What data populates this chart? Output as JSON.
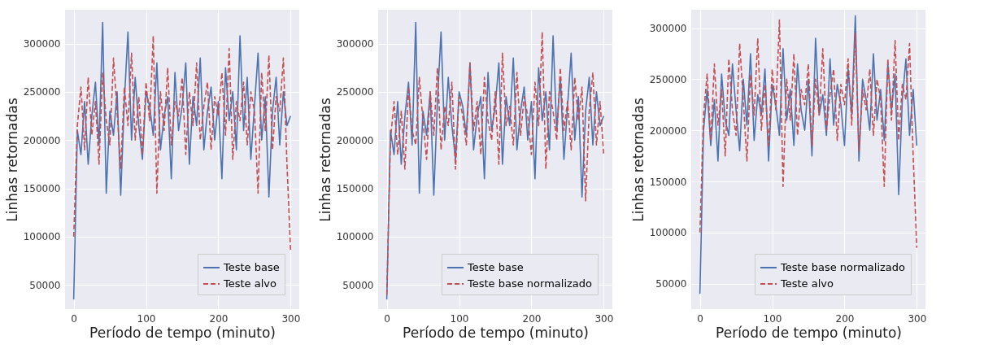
{
  "chart_data": [
    {
      "type": "line",
      "xlabel": "Período de tempo (minuto)",
      "ylabel": "Linhas retornadas",
      "grid": true,
      "legend": "bottom right",
      "xlim": [
        -12,
        312
      ],
      "ylim": [
        25000,
        335000
      ],
      "xticks": [
        0,
        100,
        200,
        300
      ],
      "yticks": [
        50000,
        100000,
        150000,
        200000,
        250000,
        300000
      ],
      "x": [
        0,
        5,
        10,
        15,
        20,
        25,
        30,
        35,
        40,
        45,
        50,
        55,
        60,
        65,
        70,
        75,
        80,
        85,
        90,
        95,
        100,
        105,
        110,
        115,
        120,
        125,
        130,
        135,
        140,
        145,
        150,
        155,
        160,
        165,
        170,
        175,
        180,
        185,
        190,
        195,
        200,
        205,
        210,
        215,
        220,
        225,
        230,
        235,
        240,
        245,
        250,
        255,
        260,
        265,
        270,
        275,
        280,
        285,
        290,
        295,
        300
      ],
      "series": [
        {
          "name": "Teste base",
          "color": "#4c72b0",
          "line_style": "solid",
          "values": [
            35000,
            210000,
            185000,
            240000,
            175000,
            225000,
            260000,
            195000,
            322000,
            145000,
            230000,
            205000,
            250000,
            143000,
            240000,
            312000,
            200000,
            265000,
            215000,
            180000,
            250000,
            235000,
            205000,
            280000,
            190000,
            225000,
            245000,
            160000,
            270000,
            210000,
            235000,
            280000,
            175000,
            245000,
            215000,
            285000,
            190000,
            230000,
            255000,
            200000,
            240000,
            160000,
            275000,
            220000,
            250000,
            190000,
            308000,
            210000,
            265000,
            180000,
            235000,
            290000,
            200000,
            245000,
            141000,
            230000,
            265000,
            195000,
            250000,
            215000,
            225000
          ]
        },
        {
          "name": "Teste alvo",
          "color": "#c44e52",
          "line_style": "dashed",
          "values": [
            100000,
            215000,
            255000,
            190000,
            265000,
            205000,
            240000,
            175000,
            270000,
            220000,
            195000,
            285000,
            230000,
            170000,
            255000,
            215000,
            290000,
            200000,
            245000,
            185000,
            260000,
            220000,
            308000,
            145000,
            250000,
            210000,
            275000,
            195000,
            240000,
            225000,
            265000,
            185000,
            250000,
            215000,
            280000,
            200000,
            235000,
            260000,
            190000,
            245000,
            225000,
            270000,
            205000,
            295000,
            180000,
            240000,
            220000,
            260000,
            195000,
            250000,
            230000,
            145000,
            270000,
            210000,
            288000,
            190000,
            245000,
            230000,
            285000,
            175000,
            85000
          ]
        }
      ]
    },
    {
      "type": "line",
      "xlabel": "Período de tempo (minuto)",
      "ylabel": "Linhas retornadas",
      "grid": true,
      "legend": "bottom right",
      "xlim": [
        -12,
        312
      ],
      "ylim": [
        25000,
        335000
      ],
      "xticks": [
        0,
        100,
        200,
        300
      ],
      "yticks": [
        50000,
        100000,
        150000,
        200000,
        250000,
        300000
      ],
      "x": [
        0,
        5,
        10,
        15,
        20,
        25,
        30,
        35,
        40,
        45,
        50,
        55,
        60,
        65,
        70,
        75,
        80,
        85,
        90,
        95,
        100,
        105,
        110,
        115,
        120,
        125,
        130,
        135,
        140,
        145,
        150,
        155,
        160,
        165,
        170,
        175,
        180,
        185,
        190,
        195,
        200,
        205,
        210,
        215,
        220,
        225,
        230,
        235,
        240,
        245,
        250,
        255,
        260,
        265,
        270,
        275,
        280,
        285,
        290,
        295,
        300
      ],
      "series": [
        {
          "name": "Teste base",
          "color": "#4c72b0",
          "line_style": "solid",
          "values": [
            35000,
            210000,
            185000,
            240000,
            175000,
            225000,
            260000,
            195000,
            322000,
            145000,
            230000,
            205000,
            250000,
            143000,
            240000,
            312000,
            200000,
            265000,
            215000,
            180000,
            250000,
            235000,
            205000,
            280000,
            190000,
            225000,
            245000,
            160000,
            270000,
            210000,
            235000,
            280000,
            175000,
            245000,
            215000,
            285000,
            190000,
            230000,
            255000,
            200000,
            240000,
            160000,
            275000,
            220000,
            250000,
            190000,
            308000,
            210000,
            265000,
            180000,
            235000,
            290000,
            200000,
            245000,
            141000,
            230000,
            265000,
            195000,
            250000,
            215000,
            225000
          ]
        },
        {
          "name": "Teste base normalizado",
          "color": "#c44e52",
          "line_style": "dashed",
          "values": [
            40000,
            200000,
            240000,
            185000,
            230000,
            170000,
            255000,
            210000,
            195000,
            265000,
            220000,
            180000,
            250000,
            205000,
            275000,
            190000,
            235000,
            215000,
            260000,
            170000,
            245000,
            225000,
            195000,
            280000,
            210000,
            240000,
            185000,
            265000,
            220000,
            200000,
            250000,
            175000,
            290000,
            215000,
            235000,
            195000,
            270000,
            205000,
            245000,
            225000,
            185000,
            260000,
            215000,
            312000,
            170000,
            250000,
            230000,
            200000,
            275000,
            210000,
            240000,
            190000,
            265000,
            220000,
            255000,
            137000,
            230000,
            270000,
            195000,
            240000,
            185000
          ]
        }
      ]
    },
    {
      "type": "line",
      "xlabel": "Período de tempo (minuto)",
      "ylabel": "Linhas retornadas",
      "grid": true,
      "legend": "bottom right",
      "xlim": [
        -12,
        312
      ],
      "ylim": [
        25000,
        318000
      ],
      "xticks": [
        0,
        100,
        200,
        300
      ],
      "yticks": [
        50000,
        100000,
        150000,
        200000,
        250000,
        300000
      ],
      "x": [
        0,
        5,
        10,
        15,
        20,
        25,
        30,
        35,
        40,
        45,
        50,
        55,
        60,
        65,
        70,
        75,
        80,
        85,
        90,
        95,
        100,
        105,
        110,
        115,
        120,
        125,
        130,
        135,
        140,
        145,
        150,
        155,
        160,
        165,
        170,
        175,
        180,
        185,
        190,
        195,
        200,
        205,
        210,
        215,
        220,
        225,
        230,
        235,
        240,
        245,
        250,
        255,
        260,
        265,
        270,
        275,
        280,
        285,
        290,
        295,
        300
      ],
      "series": [
        {
          "name": "Teste base normalizado",
          "color": "#4c72b0",
          "line_style": "solid",
          "values": [
            40000,
            200000,
            240000,
            185000,
            230000,
            170000,
            255000,
            210000,
            195000,
            265000,
            220000,
            180000,
            250000,
            205000,
            275000,
            190000,
            235000,
            215000,
            260000,
            170000,
            245000,
            225000,
            195000,
            280000,
            210000,
            240000,
            185000,
            265000,
            220000,
            200000,
            250000,
            175000,
            290000,
            215000,
            235000,
            195000,
            270000,
            205000,
            245000,
            225000,
            185000,
            260000,
            215000,
            312000,
            170000,
            250000,
            230000,
            200000,
            275000,
            210000,
            240000,
            190000,
            265000,
            220000,
            255000,
            137000,
            230000,
            270000,
            195000,
            240000,
            185000
          ]
        },
        {
          "name": "Teste alvo",
          "color": "#c44e52",
          "line_style": "dashed",
          "values": [
            100000,
            215000,
            255000,
            190000,
            265000,
            205000,
            240000,
            175000,
            270000,
            220000,
            195000,
            285000,
            230000,
            170000,
            255000,
            215000,
            290000,
            200000,
            245000,
            185000,
            260000,
            220000,
            308000,
            145000,
            250000,
            210000,
            275000,
            195000,
            240000,
            225000,
            265000,
            185000,
            250000,
            215000,
            280000,
            200000,
            235000,
            260000,
            190000,
            245000,
            225000,
            270000,
            205000,
            295000,
            180000,
            240000,
            220000,
            260000,
            195000,
            250000,
            230000,
            145000,
            270000,
            210000,
            288000,
            190000,
            245000,
            230000,
            285000,
            175000,
            85000
          ]
        }
      ]
    }
  ]
}
